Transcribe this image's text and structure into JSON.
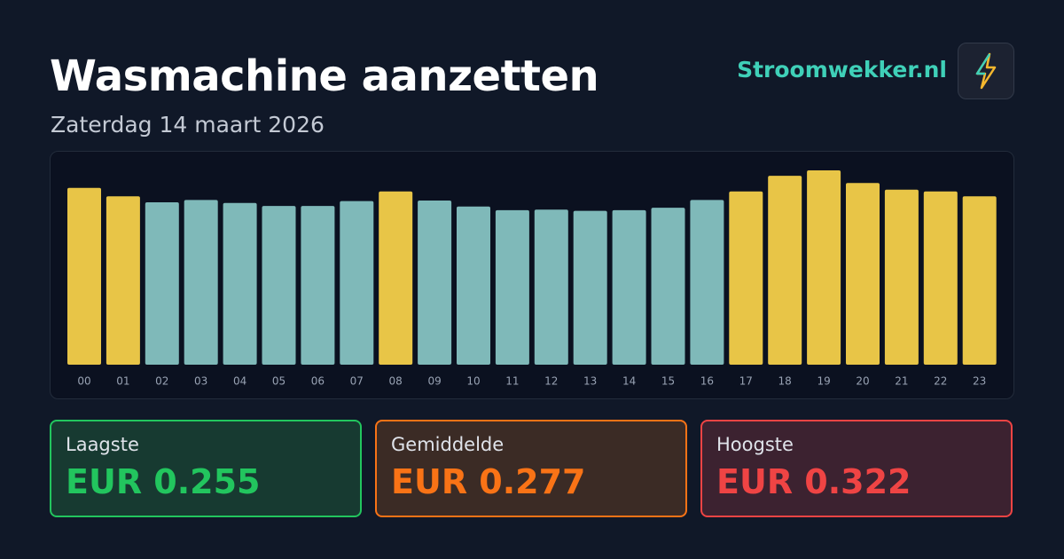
{
  "header": {
    "title": "Wasmachine aanzetten",
    "subtitle": "Zaterdag 14 maart 2026",
    "brand": "Stroomwekker.nl"
  },
  "chart_data": {
    "type": "bar",
    "categories": [
      "00",
      "01",
      "02",
      "03",
      "04",
      "05",
      "06",
      "07",
      "08",
      "09",
      "10",
      "11",
      "12",
      "13",
      "14",
      "15",
      "16",
      "17",
      "18",
      "19",
      "20",
      "21",
      "22",
      "23"
    ],
    "values": [
      0.293,
      0.279,
      0.269,
      0.273,
      0.268,
      0.263,
      0.263,
      0.271,
      0.287,
      0.272,
      0.262,
      0.256,
      0.257,
      0.255,
      0.256,
      0.26,
      0.273,
      0.287,
      0.313,
      0.322,
      0.301,
      0.29,
      0.287,
      0.279
    ],
    "colors": [
      "#e8c547",
      "#e8c547",
      "#7fb9b9",
      "#7fb9b9",
      "#7fb9b9",
      "#7fb9b9",
      "#7fb9b9",
      "#7fb9b9",
      "#e8c547",
      "#7fb9b9",
      "#7fb9b9",
      "#7fb9b9",
      "#7fb9b9",
      "#7fb9b9",
      "#7fb9b9",
      "#7fb9b9",
      "#7fb9b9",
      "#e8c547",
      "#e8c547",
      "#e8c547",
      "#e8c547",
      "#e8c547",
      "#e8c547",
      "#e8c547"
    ],
    "ylim": [
      0,
      0.322
    ]
  },
  "stats": [
    {
      "label": "Laagste",
      "text": "EUR 0.255"
    },
    {
      "label": "Gemiddelde",
      "text": "EUR 0.277"
    },
    {
      "label": "Hoogste",
      "text": "EUR 0.322"
    }
  ]
}
